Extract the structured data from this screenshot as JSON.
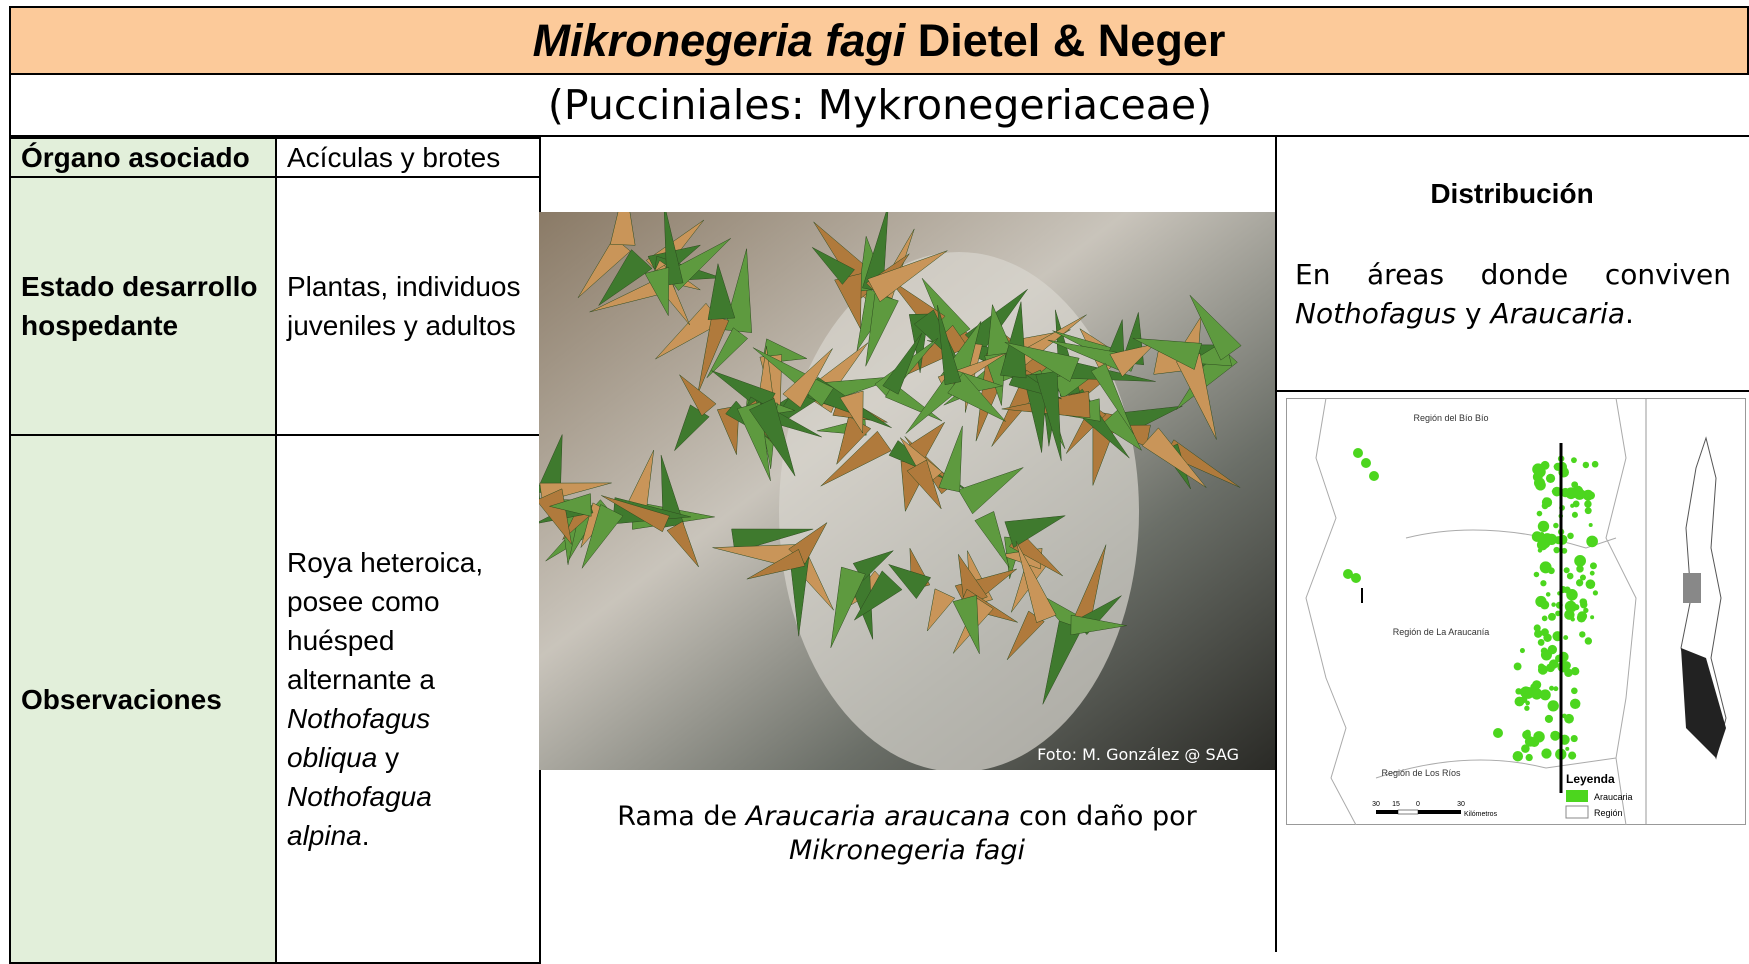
{
  "header": {
    "title_italic": "Mikronegeria fagi",
    "title_rest": "Dietel & Neger",
    "subtitle": "(Pucciniales: Mykronegeriaceae)"
  },
  "table": {
    "organ_label": "Órgano asociado",
    "organ_value": "Acículas y brotes",
    "stage_label": "Estado desarrollo hospedante",
    "stage_value": "Plantas, individuos juveniles y adultos",
    "obs_label": "Observaciones",
    "obs_parts": [
      "Roya heteroica, posee como huésped alternante a",
      "Nothofagus obliqua",
      "y",
      "Nothofagua alpina",
      "."
    ]
  },
  "photo": {
    "credit": "Foto: M. González @ SAG",
    "caption_parts": [
      "Rama de",
      "Araucaria araucana",
      "con daño por",
      "Mikronegeria fagi"
    ]
  },
  "distribution": {
    "heading": "Distribución",
    "text_parts": [
      "En áreas donde conviven",
      "Nothofagus",
      "y",
      "Araucaria",
      "."
    ]
  },
  "map": {
    "regions": [
      "Región del Bío Bío",
      "Región de La Araucanía",
      "Región de Los Ríos"
    ],
    "legend_title": "Leyenda",
    "legend_items": [
      "Araucaria",
      "Región"
    ],
    "scale_labels": [
      "30",
      "15",
      "0",
      "30"
    ],
    "scale_unit": "Kilómetros"
  }
}
